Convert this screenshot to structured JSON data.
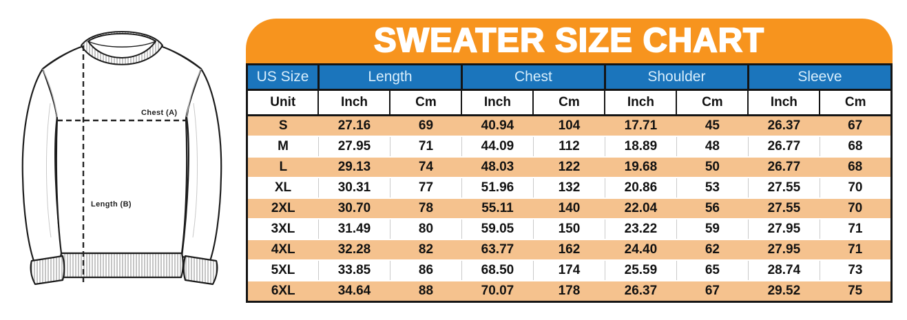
{
  "banner": {
    "title": "SWEATER SIZE CHART"
  },
  "diagram": {
    "chest_label": "Chest (A)",
    "length_label": "Length (B)"
  },
  "chart_data": {
    "type": "table",
    "title": "SWEATER SIZE CHART",
    "column_groups": [
      {
        "label": "US Size",
        "span": 1
      },
      {
        "label": "Length",
        "span": 2
      },
      {
        "label": "Chest",
        "span": 2
      },
      {
        "label": "Shoulder",
        "span": 2
      },
      {
        "label": "Sleeve",
        "span": 2
      }
    ],
    "unit_row": [
      "Unit",
      "Inch",
      "Cm",
      "Inch",
      "Cm",
      "Inch",
      "Cm",
      "Inch",
      "Cm"
    ],
    "rows": [
      [
        "S",
        "27.16",
        "69",
        "40.94",
        "104",
        "17.71",
        "45",
        "26.37",
        "67"
      ],
      [
        "M",
        "27.95",
        "71",
        "44.09",
        "112",
        "18.89",
        "48",
        "26.77",
        "68"
      ],
      [
        "L",
        "29.13",
        "74",
        "48.03",
        "122",
        "19.68",
        "50",
        "26.77",
        "68"
      ],
      [
        "XL",
        "30.31",
        "77",
        "51.96",
        "132",
        "20.86",
        "53",
        "27.55",
        "70"
      ],
      [
        "2XL",
        "30.70",
        "78",
        "55.11",
        "140",
        "22.04",
        "56",
        "27.55",
        "70"
      ],
      [
        "3XL",
        "31.49",
        "80",
        "59.05",
        "150",
        "23.22",
        "59",
        "27.95",
        "71"
      ],
      [
        "4XL",
        "32.28",
        "82",
        "63.77",
        "162",
        "24.40",
        "62",
        "27.95",
        "71"
      ],
      [
        "5XL",
        "33.85",
        "86",
        "68.50",
        "174",
        "25.59",
        "65",
        "28.74",
        "73"
      ],
      [
        "6XL",
        "34.64",
        "88",
        "70.07",
        "178",
        "26.37",
        "67",
        "29.52",
        "75"
      ]
    ]
  },
  "colors": {
    "banner_orange": "#F7941E",
    "header_blue": "#1B75BC",
    "header_text": "#D8EEFC",
    "row_peach": "#F5C28E",
    "border_black": "#141414",
    "text": "#111111"
  }
}
